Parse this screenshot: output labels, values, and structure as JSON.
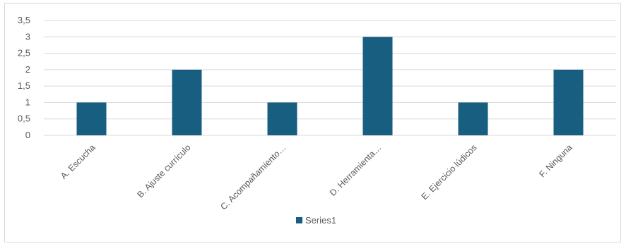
{
  "chart_data": {
    "type": "bar",
    "categories": [
      "A. Escucha",
      "B. Ajuste currículo",
      "C. Acompañamiento…",
      "D. Herramienta…",
      "E. Ejercicio lúdicos",
      "F. Ninguna"
    ],
    "series": [
      {
        "name": "Series1",
        "values": [
          1,
          2,
          1,
          3,
          1,
          2
        ],
        "color": "#175e81"
      }
    ],
    "ylim": [
      0,
      3.5
    ],
    "yticks": [
      "0",
      "0,5",
      "1",
      "1,5",
      "2",
      "2,5",
      "3",
      "3,5"
    ],
    "grid": true,
    "legend": "bottom",
    "title": "",
    "xlabel": "",
    "ylabel": ""
  }
}
